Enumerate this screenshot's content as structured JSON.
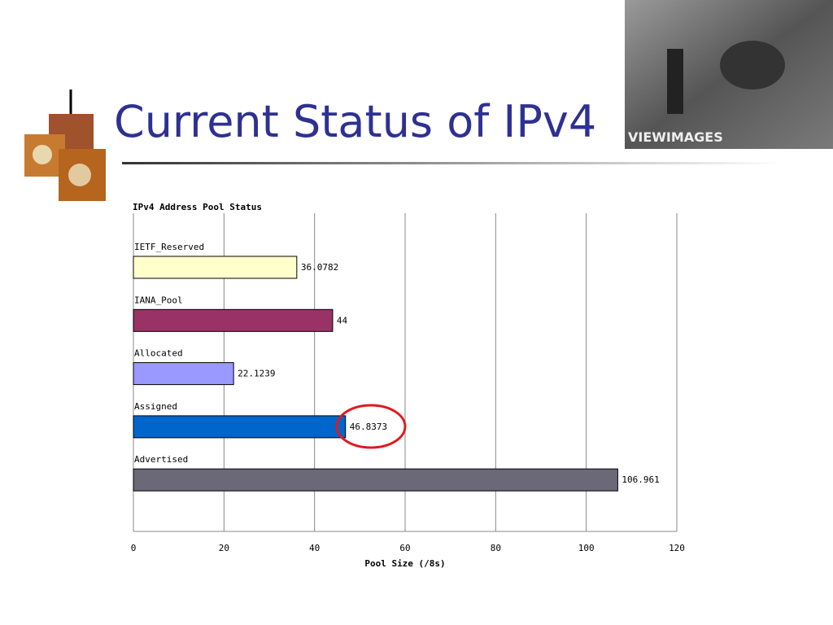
{
  "slide_title": "Current Status of IPv4",
  "photo_watermark": "VIEWIMAGES",
  "chart_data": {
    "type": "hbar",
    "title": "IPv4 Address Pool Status",
    "xlabel": "Pool Size (/8s)",
    "categories": [
      "IETF_Reserved",
      "IANA_Pool",
      "Allocated",
      "Assigned",
      "Advertised"
    ],
    "values": [
      36.0782,
      44,
      22.1239,
      46.8373,
      106.961
    ],
    "colors": [
      "#ffffcc",
      "#993366",
      "#9999ff",
      "#0066cc",
      "#6b6878"
    ],
    "xlim": [
      0,
      120
    ],
    "xticks": [
      0,
      20,
      40,
      60,
      80,
      100,
      120
    ],
    "grid": true
  }
}
